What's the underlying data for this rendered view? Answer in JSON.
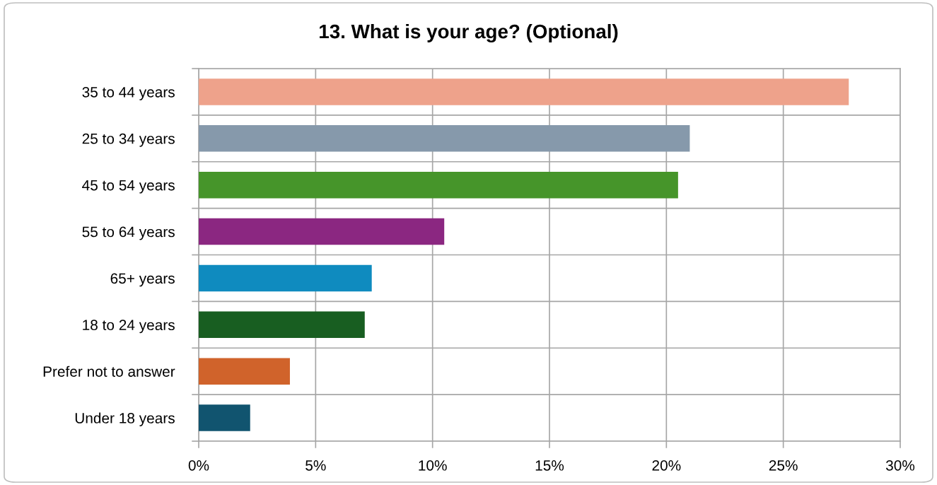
{
  "chart_data": {
    "type": "bar",
    "orientation": "horizontal",
    "title": "13. What is your age? (Optional)",
    "categories": [
      "35 to 44 years",
      "25 to 34 years",
      "45 to 54 years",
      "55 to 64 years",
      "65+ years",
      "18 to 24 years",
      "Prefer not to answer",
      "Under 18 years"
    ],
    "values": [
      27.8,
      21.0,
      20.5,
      10.5,
      7.4,
      7.1,
      3.9,
      2.2
    ],
    "colors": [
      "#eea28b",
      "#8699ab",
      "#46952a",
      "#8b2781",
      "#0f8bbf",
      "#185e21",
      "#d0632b",
      "#11546f"
    ],
    "xlim": [
      0,
      30
    ],
    "xticks": [
      {
        "value": 0,
        "label": "0%"
      },
      {
        "value": 5,
        "label": "5%"
      },
      {
        "value": 10,
        "label": "10%"
      },
      {
        "value": 15,
        "label": "15%"
      },
      {
        "value": 20,
        "label": "20%"
      },
      {
        "value": 25,
        "label": "25%"
      },
      {
        "value": 30,
        "label": "30%"
      }
    ],
    "grid": true
  }
}
